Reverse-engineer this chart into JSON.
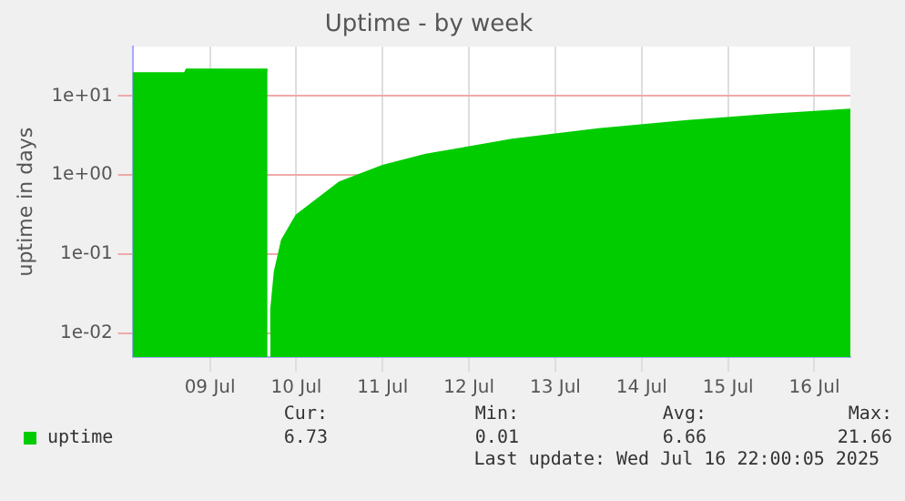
{
  "chart_data": {
    "type": "area",
    "title": "Uptime - by week",
    "ylabel": "uptime in days",
    "x": [
      "2025-07-08T14:30",
      "2025-07-09T05:00",
      "2025-07-09T05:30",
      "2025-07-10T04:00",
      "2025-07-10T04:15",
      "2025-07-10T04:45",
      "2025-07-10T05:00",
      "2025-07-10T06:00",
      "2025-07-10T08:00",
      "2025-07-10T12:00",
      "2025-07-11T00:00",
      "2025-07-11T12:00",
      "2025-07-12T00:00",
      "2025-07-13T00:00",
      "2025-07-14T00:00",
      "2025-07-15T00:00",
      "2025-07-16T00:00",
      "2025-07-16T22:00"
    ],
    "series": [
      {
        "name": "uptime",
        "color": "#00cc00",
        "values": [
          19.5,
          19.5,
          21.6,
          21.6,
          null,
          0.01,
          0.02,
          0.06,
          0.15,
          0.31,
          0.81,
          1.31,
          1.81,
          2.81,
          3.81,
          4.81,
          5.81,
          6.73
        ]
      }
    ],
    "log": "y",
    "ylim": [
      0.005,
      42
    ],
    "yticks": [
      {
        "value": 0.01,
        "label": "1e-02"
      },
      {
        "value": 0.1,
        "label": "1e-01"
      },
      {
        "value": 1,
        "label": "1e+00"
      },
      {
        "value": 10,
        "label": "1e+01"
      }
    ],
    "xlim": [
      "2025-07-08T14:30",
      "2025-07-16T22:00"
    ],
    "xticks": [
      {
        "value": "2025-07-09T12:00",
        "label": "09 Jul"
      },
      {
        "value": "2025-07-10T12:00",
        "label": "10 Jul"
      },
      {
        "value": "2025-07-11T12:00",
        "label": "11 Jul"
      },
      {
        "value": "2025-07-12T12:00",
        "label": "12 Jul"
      },
      {
        "value": "2025-07-13T12:00",
        "label": "13 Jul"
      },
      {
        "value": "2025-07-14T12:00",
        "label": "14 Jul"
      },
      {
        "value": "2025-07-15T12:00",
        "label": "15 Jul"
      },
      {
        "value": "2025-07-16T12:00",
        "label": "16 Jul"
      }
    ],
    "grid": true,
    "legend": "bottom left",
    "annotations": [
      "Cur:",
      "Min:",
      "Avg:",
      "Max:",
      "6.73",
      "0.01",
      "6.66",
      "21.66",
      "Last update: Wed Jul 16 22:00:05 2025"
    ]
  }
}
